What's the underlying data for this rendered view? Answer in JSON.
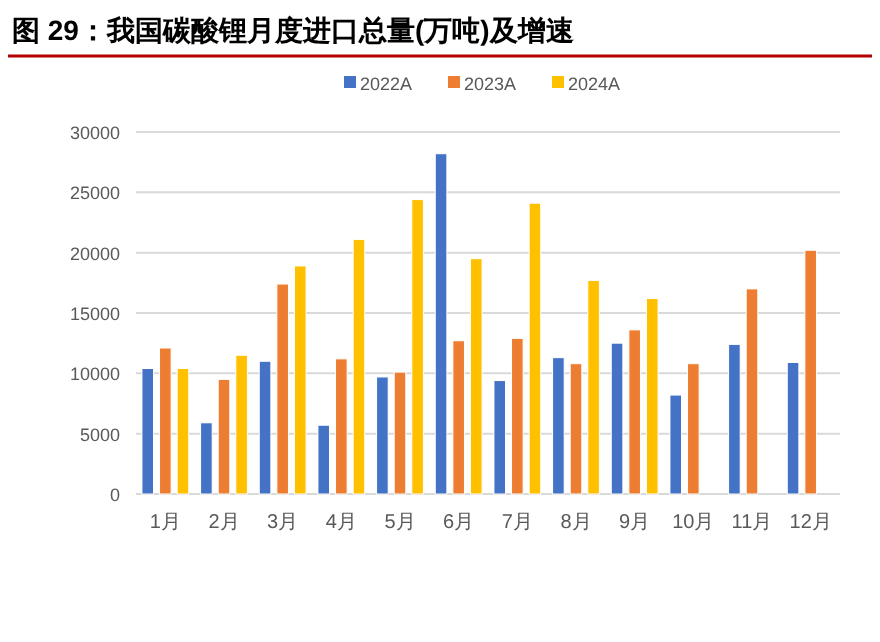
{
  "chart_data": {
    "type": "bar",
    "title": "图 29：我国碳酸锂月度进口总量(万吨)及增速",
    "categories": [
      "1月",
      "2月",
      "3月",
      "4月",
      "5月",
      "6月",
      "7月",
      "8月",
      "9月",
      "10月",
      "11月",
      "12月"
    ],
    "series": [
      {
        "name": "2022A",
        "color": "#4472c4",
        "values": [
          10400,
          5900,
          11000,
          5700,
          9700,
          28200,
          9400,
          11300,
          12500,
          8200,
          12400,
          10900
        ]
      },
      {
        "name": "2023A",
        "color": "#ed7d31",
        "values": [
          12100,
          9500,
          17400,
          11200,
          10100,
          12700,
          12900,
          10800,
          13600,
          10800,
          17000,
          20200
        ]
      },
      {
        "name": "2024A",
        "color": "#ffc000",
        "values": [
          10400,
          11500,
          18900,
          21100,
          24400,
          19500,
          24100,
          17700,
          16200,
          null,
          null,
          null
        ]
      }
    ],
    "ylim": [
      0,
      30000
    ],
    "yticks": [
      0,
      5000,
      10000,
      15000,
      20000,
      25000,
      30000
    ],
    "grid": "y",
    "legend": "top"
  }
}
